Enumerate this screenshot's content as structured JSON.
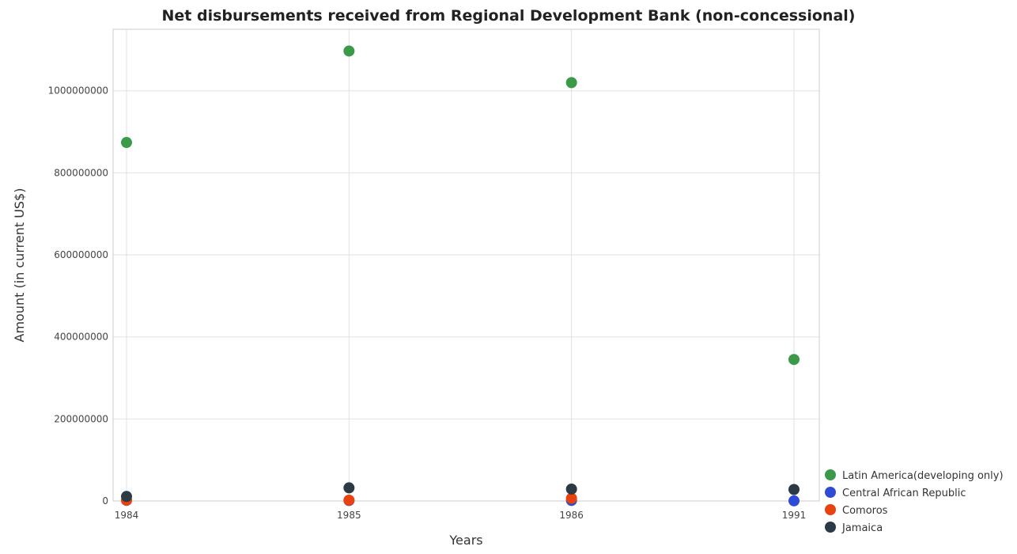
{
  "chart_data": {
    "type": "scatter",
    "title": "Net disbursements received from Regional Development Bank (non-concessional)",
    "xlabel": "Years",
    "ylabel": "Amount (in current US$)",
    "categories": [
      "1984",
      "1985",
      "1986",
      "1991"
    ],
    "ylim": [
      0,
      1150000000
    ],
    "yticks": [
      0,
      200000000,
      400000000,
      600000000,
      800000000,
      1000000000
    ],
    "ytick_labels": [
      "0",
      "200000000",
      "400000000",
      "600000000",
      "800000000",
      "1000000000"
    ],
    "grid": true,
    "legend_position": "bottom-right",
    "series": [
      {
        "name": "Latin America(developing only)",
        "color": "#3a9a4a",
        "values": [
          874000000,
          1097000000,
          1020000000,
          345000000
        ]
      },
      {
        "name": "Central African Republic",
        "color": "#2e4bd8",
        "values": [
          1500000,
          1200000,
          1300000,
          300000
        ]
      },
      {
        "name": "Comoros",
        "color": "#e8420e",
        "values": [
          1800000,
          2000000,
          6500000,
          null
        ]
      },
      {
        "name": "Jamaica",
        "color": "#2b3a45",
        "values": [
          11000000,
          32000000,
          29000000,
          28000000
        ]
      }
    ]
  }
}
